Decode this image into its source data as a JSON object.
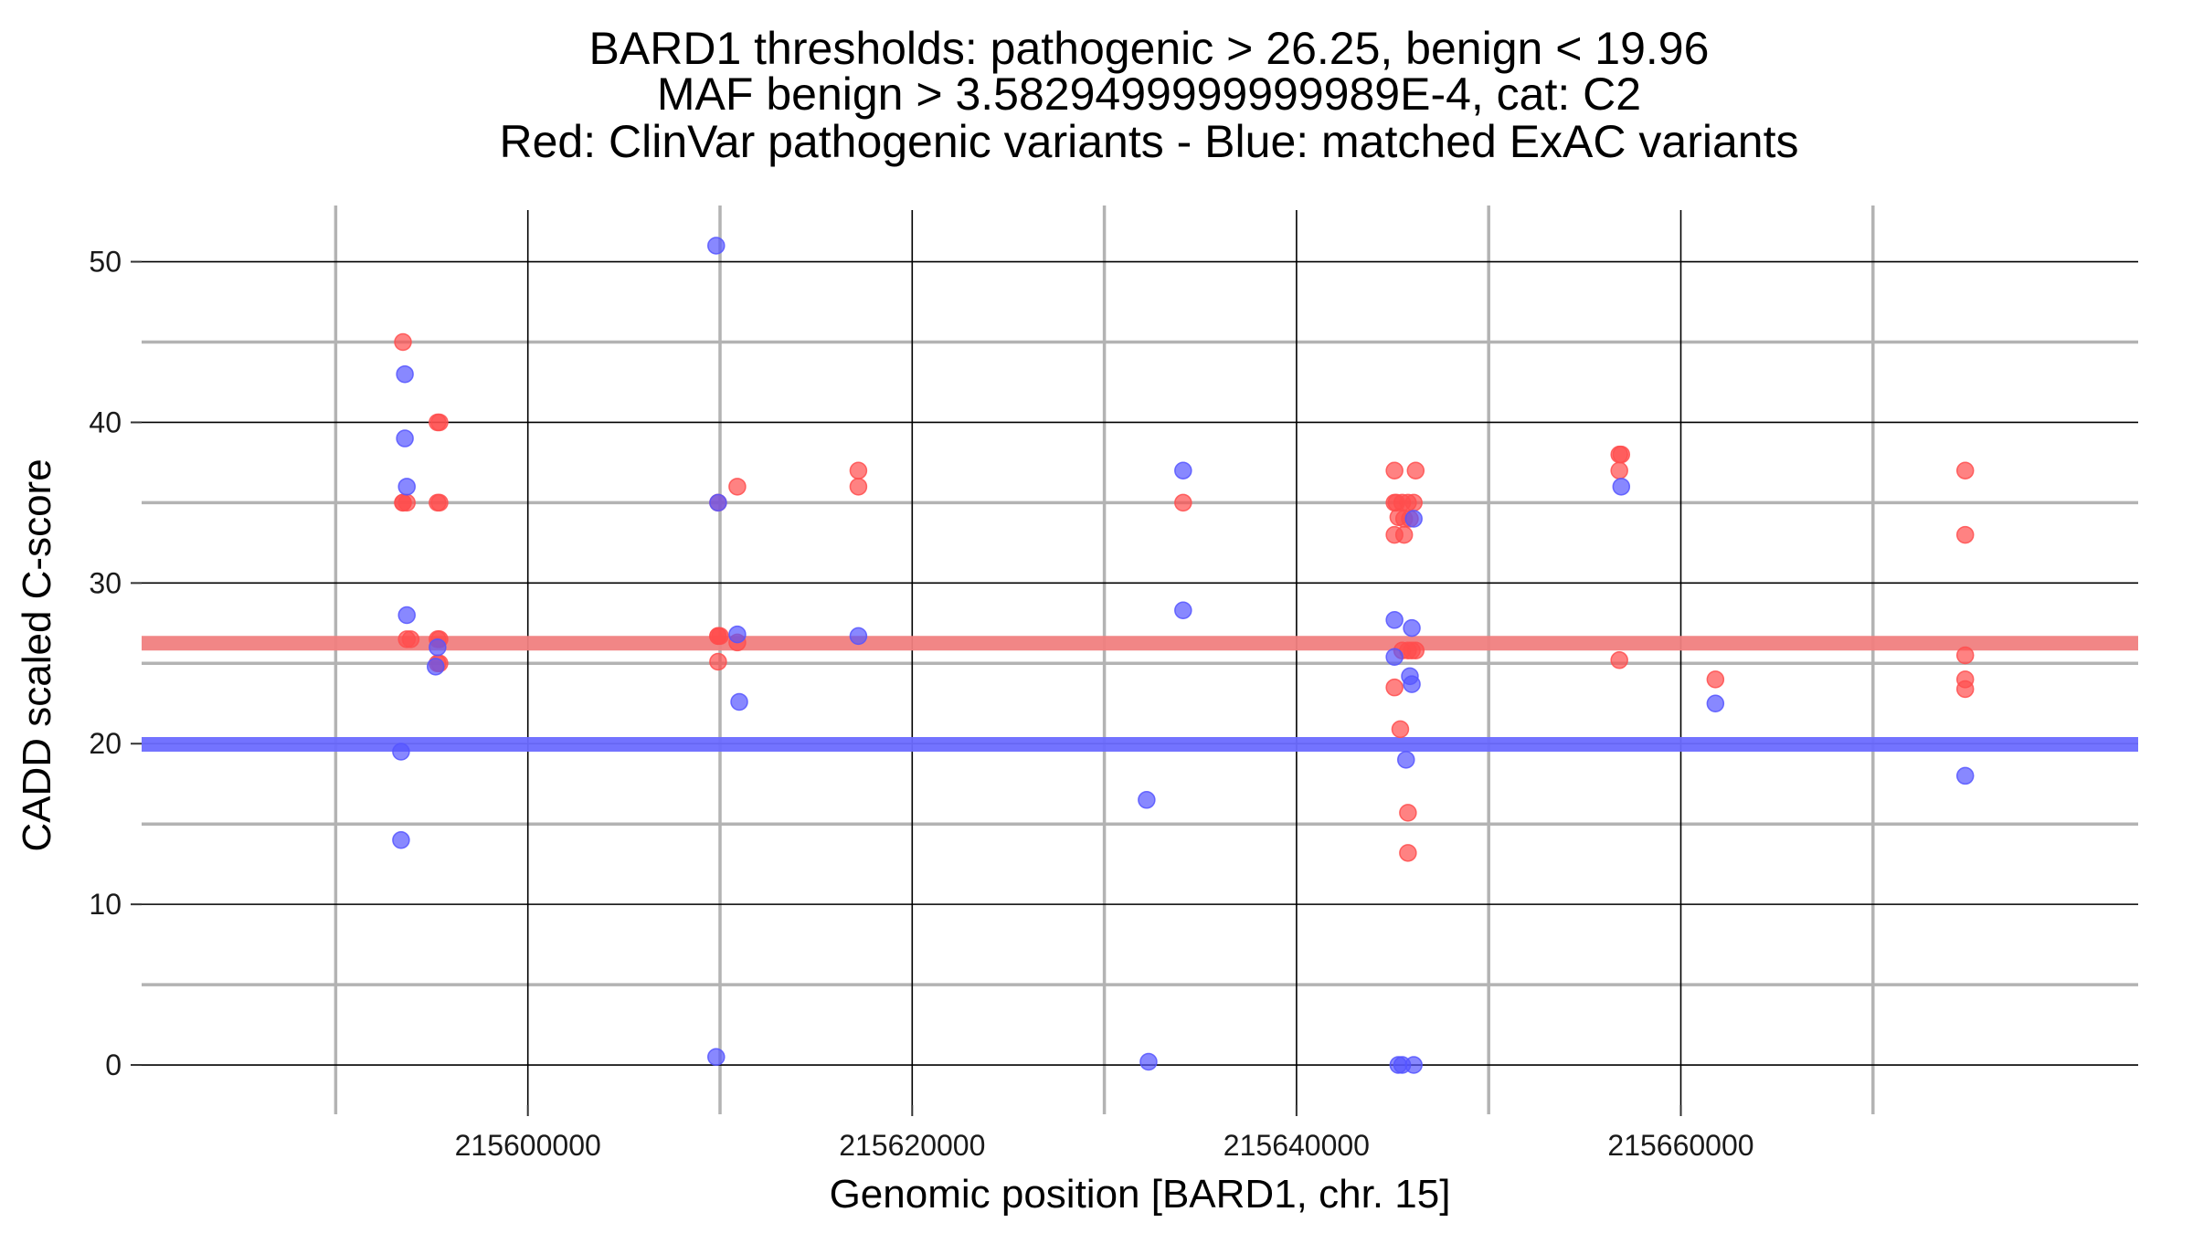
{
  "chart_data": {
    "type": "scatter",
    "title_lines": [
      "BARD1 thresholds: pathogenic > 26.25, benign < 19.96",
      "MAF benign > 3.5829499999999989E-4, cat: C2",
      "Red: ClinVar pathogenic variants - Blue: matched ExAC variants"
    ],
    "xlabel": "Genomic position [BARD1, chr. 15]",
    "ylabel": "CADD scaled C-score",
    "xlim": [
      215579900,
      215683800
    ],
    "ylim": [
      -2.5,
      53.5
    ],
    "xticks": [
      215600000,
      215620000,
      215640000,
      215660000
    ],
    "xtick_labels": [
      "215600000",
      "215620000",
      "215640000",
      "215660000"
    ],
    "xminor": [
      215590000,
      215610000,
      215630000,
      215650000,
      215670000
    ],
    "yticks": [
      0,
      10,
      20,
      30,
      40,
      50
    ],
    "ytick_labels": [
      "0",
      "10",
      "20",
      "30",
      "40",
      "50"
    ],
    "yminor": [
      5,
      15,
      25,
      35,
      45
    ],
    "grid": true,
    "legend": "none",
    "thresholds": [
      {
        "name": "pathogenic",
        "value": 26.25,
        "color": "#f08080"
      },
      {
        "name": "benign",
        "value": 19.96,
        "color": "#6b6bff"
      }
    ],
    "series": [
      {
        "color": "#ff4d4d",
        "points": [
          {
            "x": 215593500,
            "y": 45
          },
          {
            "x": 215593500,
            "y": 35
          },
          {
            "x": 215593500,
            "y": 35
          },
          {
            "x": 215593700,
            "y": 35
          },
          {
            "x": 215593700,
            "y": 26.5
          },
          {
            "x": 215593900,
            "y": 26.5
          },
          {
            "x": 215595300,
            "y": 40
          },
          {
            "x": 215595400,
            "y": 40
          },
          {
            "x": 215595300,
            "y": 35
          },
          {
            "x": 215595400,
            "y": 35
          },
          {
            "x": 215595300,
            "y": 26.5
          },
          {
            "x": 215595400,
            "y": 26.5
          },
          {
            "x": 215595300,
            "y": 25
          },
          {
            "x": 215595400,
            "y": 25
          },
          {
            "x": 215609900,
            "y": 35
          },
          {
            "x": 215609900,
            "y": 26.7
          },
          {
            "x": 215609900,
            "y": 26.7
          },
          {
            "x": 215610000,
            "y": 26.7
          },
          {
            "x": 215609900,
            "y": 25.1
          },
          {
            "x": 215610900,
            "y": 36
          },
          {
            "x": 215610900,
            "y": 26.3
          },
          {
            "x": 215617200,
            "y": 37
          },
          {
            "x": 215617200,
            "y": 36
          },
          {
            "x": 215634100,
            "y": 35
          },
          {
            "x": 215645100,
            "y": 37
          },
          {
            "x": 215645100,
            "y": 35
          },
          {
            "x": 215645200,
            "y": 35
          },
          {
            "x": 215645500,
            "y": 35
          },
          {
            "x": 215645800,
            "y": 35
          },
          {
            "x": 215646100,
            "y": 35
          },
          {
            "x": 215645300,
            "y": 34.1
          },
          {
            "x": 215645600,
            "y": 34
          },
          {
            "x": 215645900,
            "y": 34
          },
          {
            "x": 215645100,
            "y": 33
          },
          {
            "x": 215645600,
            "y": 33
          },
          {
            "x": 215645500,
            "y": 25.8
          },
          {
            "x": 215645800,
            "y": 25.8
          },
          {
            "x": 215646000,
            "y": 25.8
          },
          {
            "x": 215646200,
            "y": 25.8
          },
          {
            "x": 215645100,
            "y": 23.5
          },
          {
            "x": 215645400,
            "y": 20.9
          },
          {
            "x": 215645800,
            "y": 15.7
          },
          {
            "x": 215645800,
            "y": 13.2
          },
          {
            "x": 215646200,
            "y": 37
          },
          {
            "x": 215656800,
            "y": 38
          },
          {
            "x": 215656900,
            "y": 38
          },
          {
            "x": 215656800,
            "y": 37
          },
          {
            "x": 215656800,
            "y": 25.2
          },
          {
            "x": 215661800,
            "y": 24
          },
          {
            "x": 215674800,
            "y": 37
          },
          {
            "x": 215674800,
            "y": 33
          },
          {
            "x": 215674800,
            "y": 25.5
          },
          {
            "x": 215674800,
            "y": 24
          },
          {
            "x": 215674800,
            "y": 23.4
          }
        ]
      },
      {
        "color": "#5555ff",
        "points": [
          {
            "x": 215593600,
            "y": 43
          },
          {
            "x": 215593600,
            "y": 39
          },
          {
            "x": 215593700,
            "y": 36
          },
          {
            "x": 215593700,
            "y": 28
          },
          {
            "x": 215593400,
            "y": 19.5
          },
          {
            "x": 215593400,
            "y": 14
          },
          {
            "x": 215595300,
            "y": 26
          },
          {
            "x": 215595200,
            "y": 24.8
          },
          {
            "x": 215609800,
            "y": 51
          },
          {
            "x": 215609800,
            "y": 0.5
          },
          {
            "x": 215609900,
            "y": 35
          },
          {
            "x": 215610900,
            "y": 26.8
          },
          {
            "x": 215611000,
            "y": 22.6
          },
          {
            "x": 215617200,
            "y": 26.7
          },
          {
            "x": 215632200,
            "y": 16.5
          },
          {
            "x": 215632300,
            "y": 0.2
          },
          {
            "x": 215634100,
            "y": 37
          },
          {
            "x": 215634100,
            "y": 28.3
          },
          {
            "x": 215645100,
            "y": 27.7
          },
          {
            "x": 215646000,
            "y": 27.2
          },
          {
            "x": 215645100,
            "y": 25.4
          },
          {
            "x": 215645900,
            "y": 24.2
          },
          {
            "x": 215646000,
            "y": 23.7
          },
          {
            "x": 215645700,
            "y": 19
          },
          {
            "x": 215646100,
            "y": 34
          },
          {
            "x": 215645300,
            "y": 0
          },
          {
            "x": 215645500,
            "y": 0
          },
          {
            "x": 215646100,
            "y": 0
          },
          {
            "x": 215656900,
            "y": 36
          },
          {
            "x": 215661800,
            "y": 22.5
          },
          {
            "x": 215674800,
            "y": 18
          }
        ]
      }
    ]
  }
}
